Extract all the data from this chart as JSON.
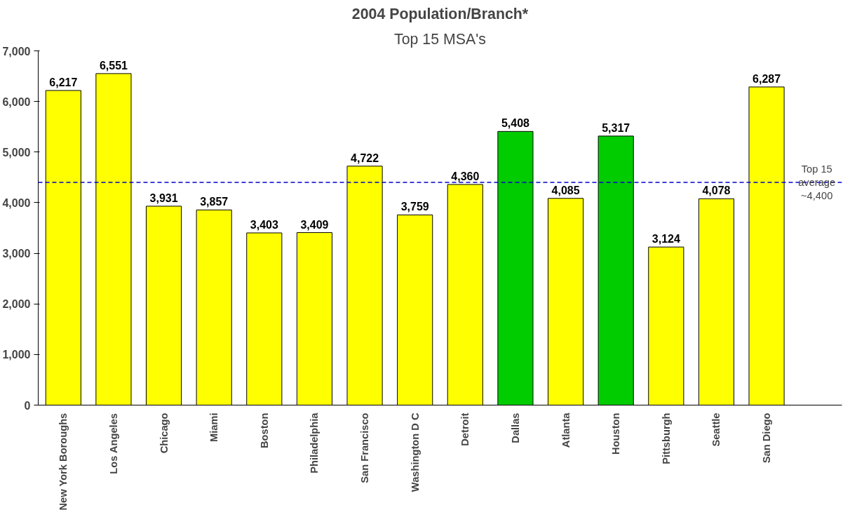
{
  "chart_data": {
    "type": "bar",
    "title": "2004 Population/Branch*",
    "subtitle": "Top 15 MSA's",
    "categories": [
      "New York Boroughs",
      "Los Angeles",
      "Chicago",
      "Miami",
      "Boston",
      "Philadelphia",
      "San Francisco",
      "Washington D C",
      "Detroit",
      "Dallas",
      "Atlanta",
      "Houston",
      "Pittsburgh",
      "Seattle",
      "San Diego"
    ],
    "values": [
      6217,
      6551,
      3931,
      3857,
      3403,
      3409,
      4722,
      3759,
      4360,
      5408,
      4085,
      5317,
      3124,
      4078,
      6287
    ],
    "colors": [
      "#ffff00",
      "#ffff00",
      "#ffff00",
      "#ffff00",
      "#ffff00",
      "#ffff00",
      "#ffff00",
      "#ffff00",
      "#ffff00",
      "#00cc00",
      "#ffff00",
      "#00cc00",
      "#ffff00",
      "#ffff00",
      "#ffff00"
    ],
    "value_labels": [
      "6,217",
      "6,551",
      "3,931",
      "3,857",
      "3,403",
      "3,409",
      "4,722",
      "3,759",
      "4,360",
      "5,408",
      "4,085",
      "5,317",
      "3,124",
      "4,078",
      "6,287"
    ],
    "ylim": [
      0,
      7000
    ],
    "yticks": [
      {
        "value": 0,
        "label": "0"
      },
      {
        "value": 1000,
        "label": "1,000"
      },
      {
        "value": 2000,
        "label": "2,000"
      },
      {
        "value": 3000,
        "label": "3,000"
      },
      {
        "value": 4000,
        "label": "4,000"
      },
      {
        "value": 5000,
        "label": "5,000"
      },
      {
        "value": 6000,
        "label": "6,000"
      },
      {
        "value": 7000,
        "label": "7,000"
      }
    ],
    "ref_lines": [
      {
        "axis": "y",
        "value": 4400,
        "label": "Top 15 average ~4,400",
        "color": "#0000cc",
        "line_style": "dashed"
      }
    ],
    "grid": false
  }
}
